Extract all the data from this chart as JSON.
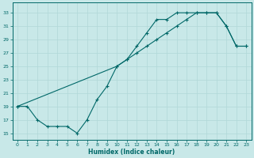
{
  "title": "",
  "xlabel": "Humidex (Indice chaleur)",
  "bg_color": "#c8e8e8",
  "grid_color": "#b0d8d8",
  "line_color": "#006868",
  "xlim": [
    -0.5,
    23.5
  ],
  "ylim": [
    14.0,
    34.5
  ],
  "yticks": [
    15,
    17,
    19,
    21,
    23,
    25,
    27,
    29,
    31,
    33
  ],
  "xticks": [
    0,
    1,
    2,
    3,
    4,
    5,
    6,
    7,
    8,
    9,
    10,
    11,
    12,
    13,
    14,
    15,
    16,
    17,
    18,
    19,
    20,
    21,
    22,
    23
  ],
  "line1_x": [
    0,
    1,
    2,
    3,
    4,
    5,
    6,
    7,
    8,
    9,
    10,
    11,
    12,
    13,
    14,
    15,
    16,
    17,
    18,
    19,
    20,
    21,
    22,
    23
  ],
  "line1_y": [
    19,
    19,
    17,
    16,
    16,
    16,
    15,
    17,
    20,
    22,
    25,
    26,
    28,
    30,
    32,
    32,
    33,
    33,
    33,
    33,
    33,
    31,
    28,
    28
  ],
  "line2_x": [
    0,
    10,
    11,
    12,
    13,
    14,
    15,
    16,
    17,
    18,
    19,
    20,
    21,
    22,
    23
  ],
  "line2_y": [
    19,
    25,
    26,
    27,
    28,
    29,
    30,
    31,
    32,
    33,
    33,
    33,
    31,
    28,
    28
  ]
}
